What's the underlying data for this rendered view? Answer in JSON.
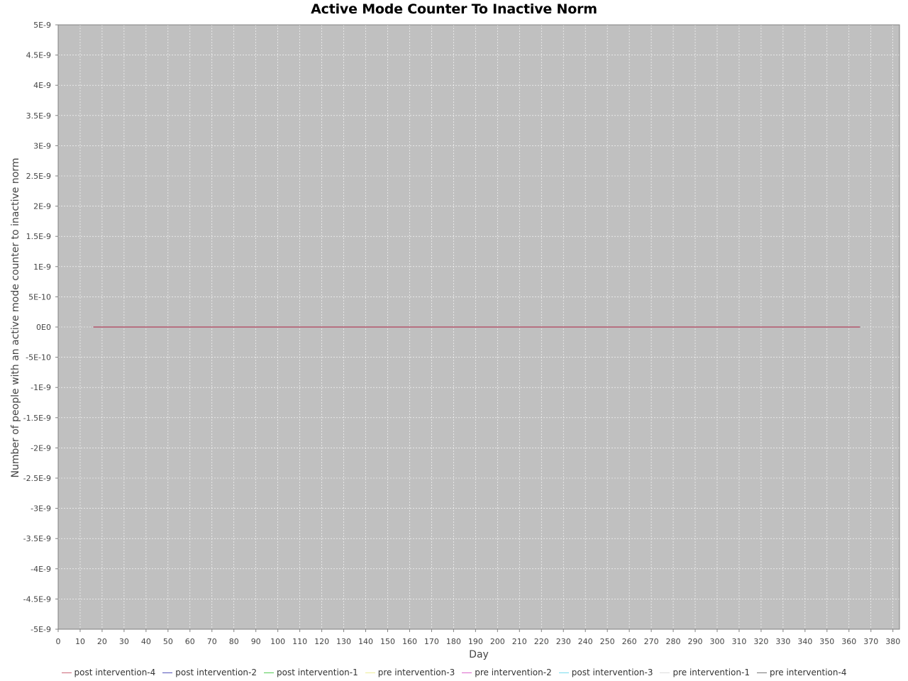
{
  "chart_data": {
    "type": "line",
    "title": "Active Mode Counter To Inactive Norm",
    "xlabel": "Day",
    "ylabel": "Number of people with an active mode counter to inactive norm",
    "xlim": [
      0,
      383
    ],
    "ylim": [
      -5e-09,
      5e-09
    ],
    "x_ticks": [
      0,
      10,
      20,
      30,
      40,
      50,
      60,
      70,
      80,
      90,
      100,
      110,
      120,
      130,
      140,
      150,
      160,
      170,
      180,
      190,
      200,
      210,
      220,
      230,
      240,
      250,
      260,
      270,
      280,
      290,
      300,
      310,
      320,
      330,
      340,
      350,
      360,
      370,
      380
    ],
    "y_ticks": [
      {
        "value": 5e-09,
        "label": "5E-9"
      },
      {
        "value": 4.5e-09,
        "label": "4.5E-9"
      },
      {
        "value": 4e-09,
        "label": "4E-9"
      },
      {
        "value": 3.5e-09,
        "label": "3.5E-9"
      },
      {
        "value": 3e-09,
        "label": "3E-9"
      },
      {
        "value": 2.5e-09,
        "label": "2.5E-9"
      },
      {
        "value": 2e-09,
        "label": "2E-9"
      },
      {
        "value": 1.5e-09,
        "label": "1.5E-9"
      },
      {
        "value": 1e-09,
        "label": "1E-9"
      },
      {
        "value": 5e-10,
        "label": "5E-10"
      },
      {
        "value": 0,
        "label": "0E0"
      },
      {
        "value": -5e-10,
        "label": "-5E-10"
      },
      {
        "value": -1e-09,
        "label": "-1E-9"
      },
      {
        "value": -1.5e-09,
        "label": "-1.5E-9"
      },
      {
        "value": -2e-09,
        "label": "-2E-9"
      },
      {
        "value": -2.5e-09,
        "label": "-2.5E-9"
      },
      {
        "value": -3e-09,
        "label": "-3E-9"
      },
      {
        "value": -3.5e-09,
        "label": "-3.5E-9"
      },
      {
        "value": -4e-09,
        "label": "-4E-9"
      },
      {
        "value": -4.5e-09,
        "label": "-4.5E-9"
      },
      {
        "value": -5e-09,
        "label": "-5E-9"
      }
    ],
    "grid": true,
    "plot_background": "#c0c0c0",
    "legend_position": "bottom",
    "series": [
      {
        "name": "post intervention-4",
        "color": "#cc6677",
        "x": [
          16,
          365
        ],
        "y": [
          0,
          0
        ]
      },
      {
        "name": "post intervention-2",
        "color": "#5555bb",
        "x": [
          16,
          365
        ],
        "y": [
          0,
          0
        ]
      },
      {
        "name": "post intervention-1",
        "color": "#55cc55",
        "x": [
          16,
          365
        ],
        "y": [
          0,
          0
        ]
      },
      {
        "name": "pre intervention-3",
        "color": "#eeee99",
        "x": [
          16,
          365
        ],
        "y": [
          0,
          0
        ]
      },
      {
        "name": "pre intervention-2",
        "color": "#dd66cc",
        "x": [
          16,
          365
        ],
        "y": [
          0,
          0
        ]
      },
      {
        "name": "post intervention-3",
        "color": "#77ddee",
        "x": [
          16,
          365
        ],
        "y": [
          0,
          0
        ]
      },
      {
        "name": "pre intervention-1",
        "color": "#dddddd",
        "x": [
          16,
          365
        ],
        "y": [
          0,
          0
        ]
      },
      {
        "name": "pre intervention-4",
        "color": "#777777",
        "x": [
          16,
          365
        ],
        "y": [
          0,
          0
        ]
      }
    ]
  }
}
